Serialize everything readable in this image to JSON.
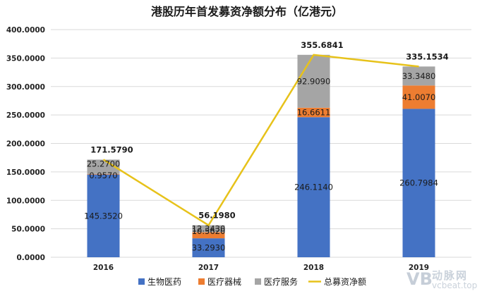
{
  "chart_data": {
    "type": "bar",
    "stacked": true,
    "title": "港股历年首发募资净额分布（亿港元）",
    "categories": [
      "2016",
      "2017",
      "2018",
      "2019"
    ],
    "ylim": [
      0,
      400
    ],
    "yticks": [
      "0.0000",
      "50.0000",
      "100.0000",
      "150.0000",
      "200.0000",
      "250.0000",
      "300.0000",
      "350.0000",
      "400.0000"
    ],
    "grid": true,
    "legend_position": "bottom",
    "series": [
      {
        "name": "生物医药",
        "type": "bar",
        "color": "#4472c4",
        "values": [
          145.352,
          33.293,
          246.114,
          260.7984
        ],
        "labels": [
          "145.3520",
          "33.2930",
          "246.1140",
          "260.7984"
        ]
      },
      {
        "name": "医疗器械",
        "type": "bar",
        "color": "#ed7d31",
        "values": [
          0.957,
          10.562,
          16.6611,
          41.007
        ],
        "labels": [
          "0.9570",
          "10.5620",
          "16.6611",
          "41.0070"
        ]
      },
      {
        "name": "医疗服务",
        "type": "bar",
        "color": "#a5a5a5",
        "values": [
          25.27,
          12.343,
          92.909,
          33.348
        ],
        "labels": [
          "25.2700",
          "12.3430",
          "92.9090",
          "33.3480"
        ]
      },
      {
        "name": "总募资净额",
        "type": "line",
        "color": "#e7c21a",
        "values": [
          171.579,
          56.198,
          355.6841,
          335.1534
        ],
        "labels": [
          "171.5790",
          "56.1980",
          "355.6841",
          "335.1534"
        ]
      }
    ]
  },
  "watermark": {
    "logo": "VB",
    "name": "动脉网",
    "url": "vcbeat.top"
  }
}
